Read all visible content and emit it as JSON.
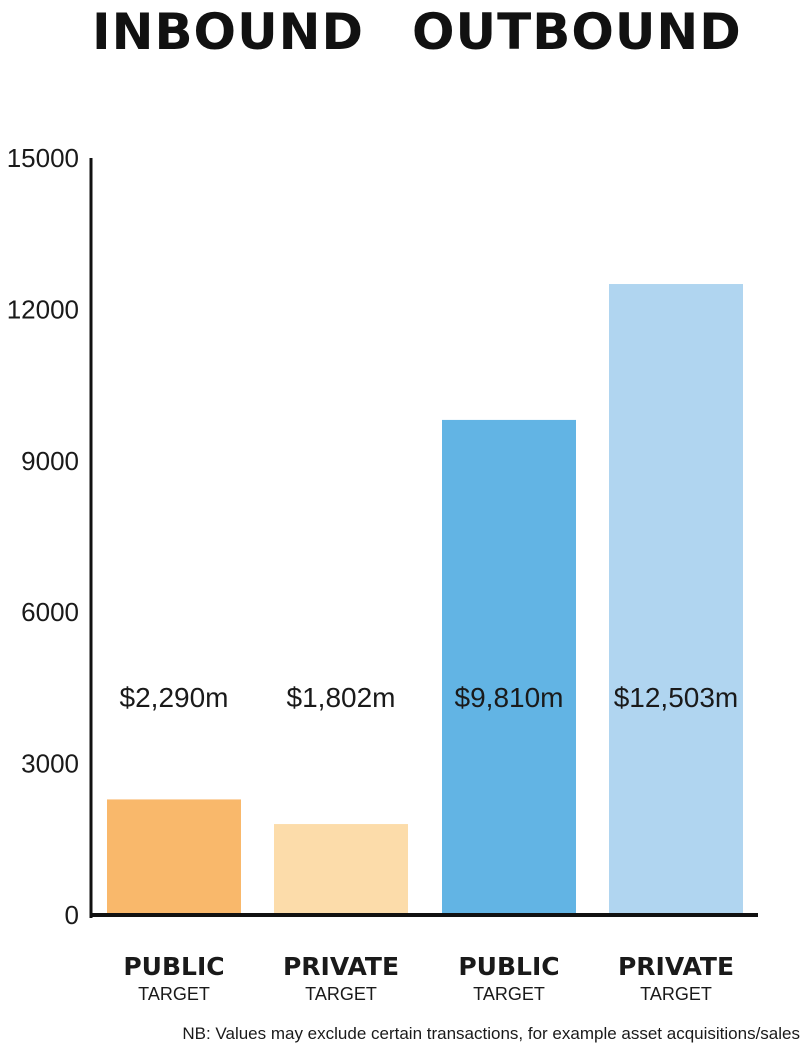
{
  "header": {
    "left_title": "INBOUND",
    "right_title": "OUTBOUND"
  },
  "chart_data": {
    "type": "bar",
    "categories": [
      {
        "main": "PUBLIC",
        "sub": "TARGET"
      },
      {
        "main": "PRIVATE",
        "sub": "TARGET"
      },
      {
        "main": "PUBLIC",
        "sub": "TARGET"
      },
      {
        "main": "PRIVATE",
        "sub": "TARGET"
      }
    ],
    "values": [
      2290,
      1802,
      9810,
      12503
    ],
    "data_labels": [
      "$2,290m",
      "$1,802m",
      "$9,810m",
      "$12,503m"
    ],
    "colors": [
      "#f9b86b",
      "#fcdcaa",
      "#62b4e4",
      "#b0d5f0"
    ],
    "groups": [
      "INBOUND",
      "INBOUND",
      "OUTBOUND",
      "OUTBOUND"
    ],
    "ylim": [
      0,
      15000
    ],
    "yticks": [
      0,
      3000,
      6000,
      9000,
      12000,
      15000
    ],
    "grid": false,
    "title": "",
    "xlabel": "",
    "ylabel": ""
  },
  "footnote": "NB: Values may exclude certain transactions, for example asset acquisitions/sales"
}
